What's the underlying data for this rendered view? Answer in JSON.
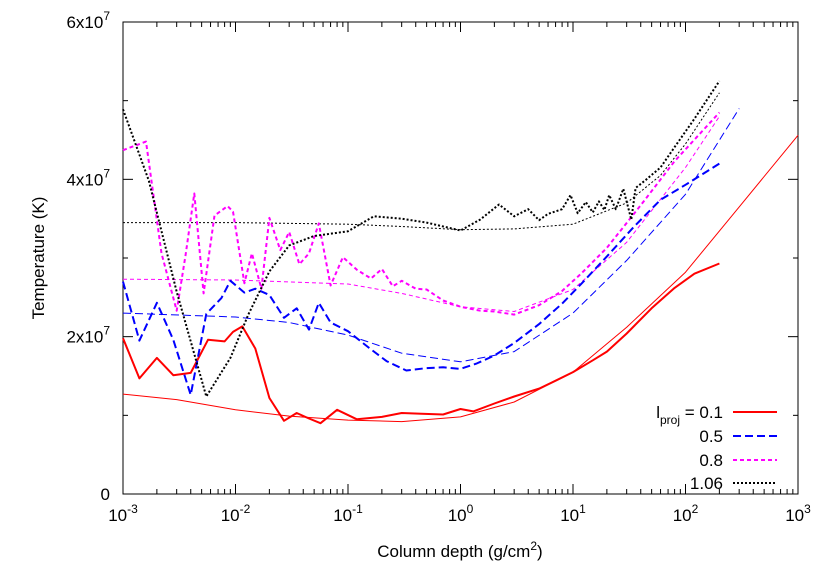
{
  "chart_data": {
    "type": "line",
    "x_scale": "log",
    "xlim": [
      0.001,
      1000
    ],
    "ylim": [
      0,
      60000000
    ],
    "xlabel": {
      "main": "Column depth (g/cm",
      "sup": "2",
      "tail": ")"
    },
    "ylabel": "Temperature (K)",
    "x_ticks": [
      {
        "value": 0.001,
        "base": "10",
        "exp": "-3"
      },
      {
        "value": 0.01,
        "base": "10",
        "exp": "-2"
      },
      {
        "value": 0.1,
        "base": "10",
        "exp": "-1"
      },
      {
        "value": 1,
        "base": "10",
        "exp": "0"
      },
      {
        "value": 10,
        "base": "10",
        "exp": "1"
      },
      {
        "value": 100,
        "base": "10",
        "exp": "2"
      },
      {
        "value": 1000,
        "base": "10",
        "exp": "3"
      }
    ],
    "y_ticks": [
      {
        "value": 0,
        "base": "0",
        "exp": ""
      },
      {
        "value": 20000000,
        "base": "2x10",
        "exp": "7"
      },
      {
        "value": 40000000,
        "base": "4x10",
        "exp": "7"
      },
      {
        "value": 60000000,
        "base": "6x10",
        "exp": "7"
      }
    ],
    "legend_position": "bottom-right",
    "series": [
      {
        "name": "0.1",
        "legend_label": {
          "pre": "l",
          "sub": "proj",
          "post": " = 0.1"
        },
        "color": "#ff0000",
        "dash": "",
        "width": 2,
        "x": [
          0.001,
          0.0014,
          0.002,
          0.0028,
          0.004,
          0.0057,
          0.008,
          0.0095,
          0.0115,
          0.015,
          0.02,
          0.027,
          0.035,
          0.045,
          0.057,
          0.08,
          0.12,
          0.2,
          0.3,
          0.45,
          0.7,
          1.0,
          1.3,
          2,
          3,
          5,
          7,
          10,
          15,
          20,
          30,
          50,
          80,
          120,
          200
        ],
        "y": [
          19800000,
          14700000,
          17300000,
          15100000,
          15400000,
          19600000,
          19400000,
          20600000,
          21300000,
          18500000,
          12200000,
          9300000,
          10300000,
          9600000,
          9000000,
          10700000,
          9500000,
          9800000,
          10300000,
          10200000,
          10100000,
          10800000,
          10500000,
          11500000,
          12400000,
          13400000,
          14400000,
          15500000,
          17000000,
          18100000,
          20400000,
          23600000,
          26200000,
          28000000,
          29300000
        ]
      },
      {
        "name": "0.5",
        "legend_label": {
          "pre": "",
          "sub": "",
          "post": "0.5"
        },
        "color": "#0000ff",
        "dash": "8,4",
        "width": 2,
        "x": [
          0.001,
          0.0014,
          0.002,
          0.0028,
          0.004,
          0.0055,
          0.0075,
          0.009,
          0.012,
          0.015,
          0.02,
          0.027,
          0.035,
          0.045,
          0.055,
          0.07,
          0.1,
          0.15,
          0.22,
          0.33,
          0.5,
          0.7,
          1.0,
          1.4,
          2,
          3,
          5,
          8,
          12,
          20,
          35,
          60,
          100,
          200
        ],
        "y": [
          27000000,
          19500000,
          24300000,
          19600000,
          12600000,
          22900000,
          24900000,
          27100000,
          25600000,
          26100000,
          25300000,
          22400000,
          23600000,
          20900000,
          24300000,
          21800000,
          20700000,
          18700000,
          16900000,
          15700000,
          16000000,
          16100000,
          15900000,
          16600000,
          17600000,
          19200000,
          21600000,
          24200000,
          26800000,
          30200000,
          34000000,
          37400000,
          39300000,
          42000000
        ]
      },
      {
        "name": "0.8",
        "legend_label": {
          "pre": "",
          "sub": "",
          "post": "0.8"
        },
        "color": "#ff00ff",
        "dash": "4,3",
        "width": 2,
        "x": [
          0.001,
          0.0016,
          0.0022,
          0.003,
          0.0036,
          0.0043,
          0.0052,
          0.0065,
          0.0085,
          0.0095,
          0.012,
          0.014,
          0.017,
          0.02,
          0.025,
          0.03,
          0.037,
          0.045,
          0.055,
          0.07,
          0.09,
          0.12,
          0.16,
          0.2,
          0.25,
          0.3,
          0.4,
          0.5,
          0.7,
          1.0,
          1.5,
          2,
          3,
          5,
          8,
          12,
          20,
          40,
          80,
          200
        ],
        "y": [
          43700000,
          44800000,
          30600000,
          23300000,
          30400000,
          38200000,
          25500000,
          35400000,
          36600000,
          35900000,
          26800000,
          30600000,
          26100000,
          35100000,
          31000000,
          33300000,
          29200000,
          30600000,
          34400000,
          26500000,
          30100000,
          28500000,
          27400000,
          28600000,
          26400000,
          27100000,
          26100000,
          26000000,
          24600000,
          23800000,
          23300000,
          23200000,
          22800000,
          24000000,
          25800000,
          28100000,
          31300000,
          36700000,
          42300000,
          48500000
        ]
      },
      {
        "name": "1.06",
        "legend_label": {
          "pre": "",
          "sub": "",
          "post": "1.06"
        },
        "color": "#000000",
        "dash": "2,2",
        "width": 2,
        "x": [
          0.001,
          0.0017,
          0.003,
          0.0055,
          0.009,
          0.013,
          0.02,
          0.03,
          0.05,
          0.1,
          0.17,
          0.3,
          0.5,
          1.0,
          1.5,
          2.2,
          3,
          4,
          5,
          6,
          8,
          9.5,
          11,
          13,
          15,
          17,
          19,
          21,
          24,
          28,
          33,
          36,
          45,
          60,
          80,
          120,
          200
        ],
        "y": [
          48900000,
          39800000,
          25700000,
          12400000,
          17300000,
          22800000,
          28300000,
          31600000,
          32800000,
          33400000,
          35300000,
          35000000,
          34500000,
          33500000,
          34900000,
          36800000,
          35300000,
          36200000,
          34800000,
          35600000,
          36200000,
          38000000,
          35700000,
          37100000,
          35800000,
          37200000,
          36100000,
          38000000,
          36200000,
          38800000,
          34900000,
          38900000,
          40000000,
          41500000,
          44100000,
          47700000,
          52500000
        ]
      }
    ],
    "fits": [
      {
        "name": "0.1-fit",
        "color": "#ff0000",
        "dash": "",
        "width": 1,
        "x": [
          0.001,
          0.003,
          0.01,
          0.03,
          0.1,
          0.3,
          1,
          3,
          10,
          30,
          100,
          300,
          1000
        ],
        "y": [
          12700000,
          12000000,
          10700000,
          9900000,
          9400000,
          9200000,
          9800000,
          11700000,
          15500000,
          21200000,
          28200000,
          36500000,
          45600000
        ]
      },
      {
        "name": "0.5-fit",
        "color": "#0000ff",
        "dash": "8,4",
        "width": 1,
        "x": [
          0.001,
          0.01,
          0.03,
          0.1,
          0.3,
          1,
          3,
          10,
          30,
          100,
          300
        ],
        "y": [
          23000000,
          22500000,
          21800000,
          20200000,
          17900000,
          16800000,
          18100000,
          23000000,
          29700000,
          38100000,
          49000000
        ]
      },
      {
        "name": "0.8-fit",
        "color": "#ff00ff",
        "dash": "4,3",
        "width": 1,
        "x": [
          0.001,
          0.01,
          0.1,
          0.3,
          1,
          3,
          10,
          30,
          100,
          200
        ],
        "y": [
          27300000,
          27200000,
          26700000,
          25500000,
          23800000,
          23200000,
          26000000,
          32000000,
          41500000,
          48000000
        ]
      },
      {
        "name": "1.06-fit",
        "color": "#000000",
        "dash": "2,2",
        "width": 1,
        "x": [
          0.001,
          0.01,
          0.1,
          0.3,
          1,
          3,
          10,
          30,
          60,
          100,
          200
        ],
        "y": [
          34500000,
          34500000,
          34300000,
          34000000,
          33600000,
          33700000,
          34300000,
          37000000,
          40500000,
          44500000,
          51000000
        ]
      }
    ]
  }
}
